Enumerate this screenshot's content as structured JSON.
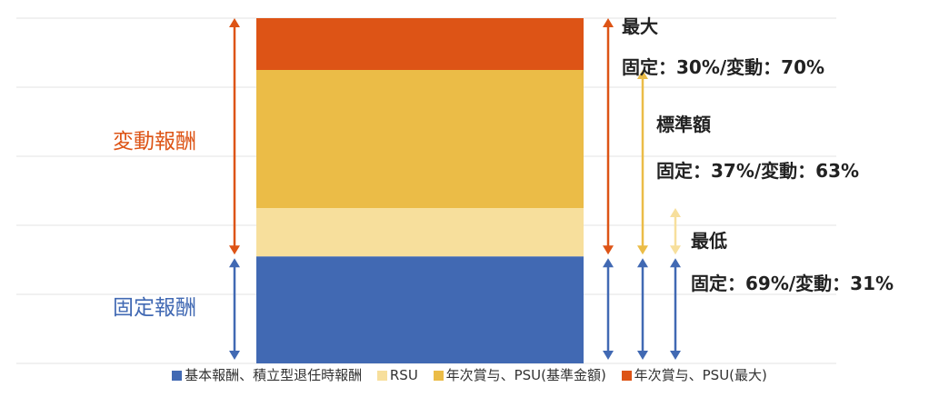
{
  "chart_data": {
    "type": "bar",
    "orientation": "stacked-column",
    "ylim": [
      0,
      100
    ],
    "grid": true,
    "legend_position": "bottom",
    "segments": [
      {
        "name": "基本報酬、積立型退任時報酬",
        "color": "#4169B3",
        "value": 31
      },
      {
        "name": "RSU",
        "color": "#F7DF9C",
        "value": 14
      },
      {
        "name": "年次賞与、PSU(基準金額)",
        "color": "#EBBC47",
        "value": 40
      },
      {
        "name": "年次賞与、PSU(最大)",
        "color": "#DD5416",
        "value": 15
      }
    ],
    "left_labels": {
      "variable": {
        "text": "変動報酬",
        "color": "#DD5416"
      },
      "fixed": {
        "text": "固定報酬",
        "color": "#4169B3"
      }
    },
    "annotations": [
      {
        "title": "最大",
        "ratio": "固定：30%/変動：70%",
        "fixed_pct": 30,
        "variable_pct": 70
      },
      {
        "title": "標準額",
        "ratio": "固定：37%/変動：63%",
        "fixed_pct": 37,
        "variable_pct": 63
      },
      {
        "title": "最低",
        "ratio": "固定：69%/変動：31%",
        "fixed_pct": 69,
        "variable_pct": 31
      }
    ]
  }
}
